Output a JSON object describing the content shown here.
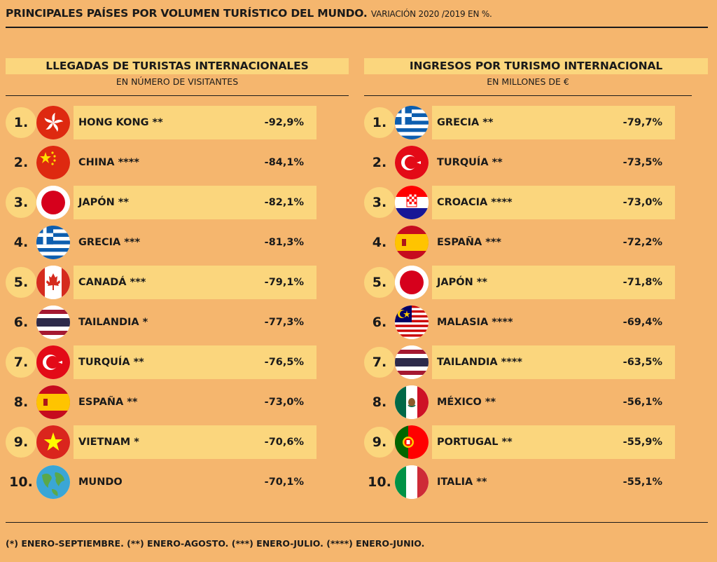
{
  "header": {
    "title": "PRINCIPALES PAÍSES POR VOLUMEN TURÍSTICO DEL MUNDO.",
    "subtitle": "VARIACIÓN 2020 /2019 EN %."
  },
  "footnote": "(*) ENERO-SEPTIEMBRE. (**) ENERO-AGOSTO. (***) ENERO-JULIO. (****) ENERO-JUNIO.",
  "colors": {
    "background": "#f5b66e",
    "highlight": "#fbd67d",
    "text": "#1a1a1a"
  },
  "chart_data": [
    {
      "type": "table",
      "title": "LLEGADAS DE TURISTAS INTERNACIONALES",
      "subtitle": "EN NÚMERO DE VISITANTES",
      "rows": [
        {
          "rank": "1.",
          "country": "HONG KONG **",
          "value": "-92,9%",
          "num": -92.9,
          "flag": "hong-kong-flag-icon",
          "highlight": true,
          "bold": false
        },
        {
          "rank": "2.",
          "country": "CHINA ****",
          "value": "-84,1%",
          "num": -84.1,
          "flag": "china-flag-icon",
          "highlight": false,
          "bold": false
        },
        {
          "rank": "3.",
          "country": "JAPÓN **",
          "value": "-82,1%",
          "num": -82.1,
          "flag": "japan-flag-icon",
          "highlight": true,
          "bold": false
        },
        {
          "rank": "4.",
          "country": "GRECIA ***",
          "value": "-81,3%",
          "num": -81.3,
          "flag": "greece-flag-icon",
          "highlight": false,
          "bold": false
        },
        {
          "rank": "5.",
          "country": "CANADÁ ***",
          "value": "-79,1%",
          "num": -79.1,
          "flag": "canada-flag-icon",
          "highlight": true,
          "bold": false
        },
        {
          "rank": "6.",
          "country": "TAILANDIA *",
          "value": "-77,3%",
          "num": -77.3,
          "flag": "thailand-flag-icon",
          "highlight": false,
          "bold": false
        },
        {
          "rank": "7.",
          "country": "TURQUÍA **",
          "value": "-76,5%",
          "num": -76.5,
          "flag": "turkey-flag-icon",
          "highlight": true,
          "bold": false
        },
        {
          "rank": "8.",
          "country": "ESPAÑA **",
          "value": "-73,0%",
          "num": -73.0,
          "flag": "spain-flag-icon",
          "highlight": false,
          "bold": true
        },
        {
          "rank": "9.",
          "country": "VIETNAM *",
          "value": "-70,6%",
          "num": -70.6,
          "flag": "vietnam-flag-icon",
          "highlight": true,
          "bold": false
        },
        {
          "rank": "10.",
          "country": "MUNDO",
          "value": "-70,1%",
          "num": -70.1,
          "flag": "world-globe-icon",
          "highlight": false,
          "bold": false
        }
      ]
    },
    {
      "type": "table",
      "title": "INGRESOS POR TURISMO INTERNACIONAL",
      "subtitle": "EN MILLONES DE €",
      "rows": [
        {
          "rank": "1.",
          "country": "GRECIA **",
          "value": "-79,7%",
          "num": -79.7,
          "flag": "greece-flag-icon",
          "highlight": true,
          "bold": false
        },
        {
          "rank": "2.",
          "country": "TURQUÍA **",
          "value": "-73,5%",
          "num": -73.5,
          "flag": "turkey-flag-icon",
          "highlight": false,
          "bold": false
        },
        {
          "rank": "3.",
          "country": "CROACIA ****",
          "value": "-73,0%",
          "num": -73.0,
          "flag": "croatia-flag-icon",
          "highlight": true,
          "bold": false
        },
        {
          "rank": "4.",
          "country": "ESPAÑA ***",
          "value": "-72,2%",
          "num": -72.2,
          "flag": "spain-flag-icon",
          "highlight": false,
          "bold": true
        },
        {
          "rank": "5.",
          "country": "JAPÓN **",
          "value": "-71,8%",
          "num": -71.8,
          "flag": "japan-flag-icon",
          "highlight": true,
          "bold": false
        },
        {
          "rank": "6.",
          "country": "MALASIA ****",
          "value": "-69,4%",
          "num": -69.4,
          "flag": "malaysia-flag-icon",
          "highlight": false,
          "bold": false
        },
        {
          "rank": "7.",
          "country": "TAILANDIA ****",
          "value": "-63,5%",
          "num": -63.5,
          "flag": "thailand-flag-icon",
          "highlight": true,
          "bold": false
        },
        {
          "rank": "8.",
          "country": "MÉXICO **",
          "value": "-56,1%",
          "num": -56.1,
          "flag": "mexico-flag-icon",
          "highlight": false,
          "bold": false
        },
        {
          "rank": "9.",
          "country": "PORTUGAL **",
          "value": "-55,9%",
          "num": -55.9,
          "flag": "portugal-flag-icon",
          "highlight": true,
          "bold": false
        },
        {
          "rank": "10.",
          "country": "ITALIA **",
          "value": "-55,1%",
          "num": -55.1,
          "flag": "italy-flag-icon",
          "highlight": false,
          "bold": false
        }
      ]
    }
  ]
}
